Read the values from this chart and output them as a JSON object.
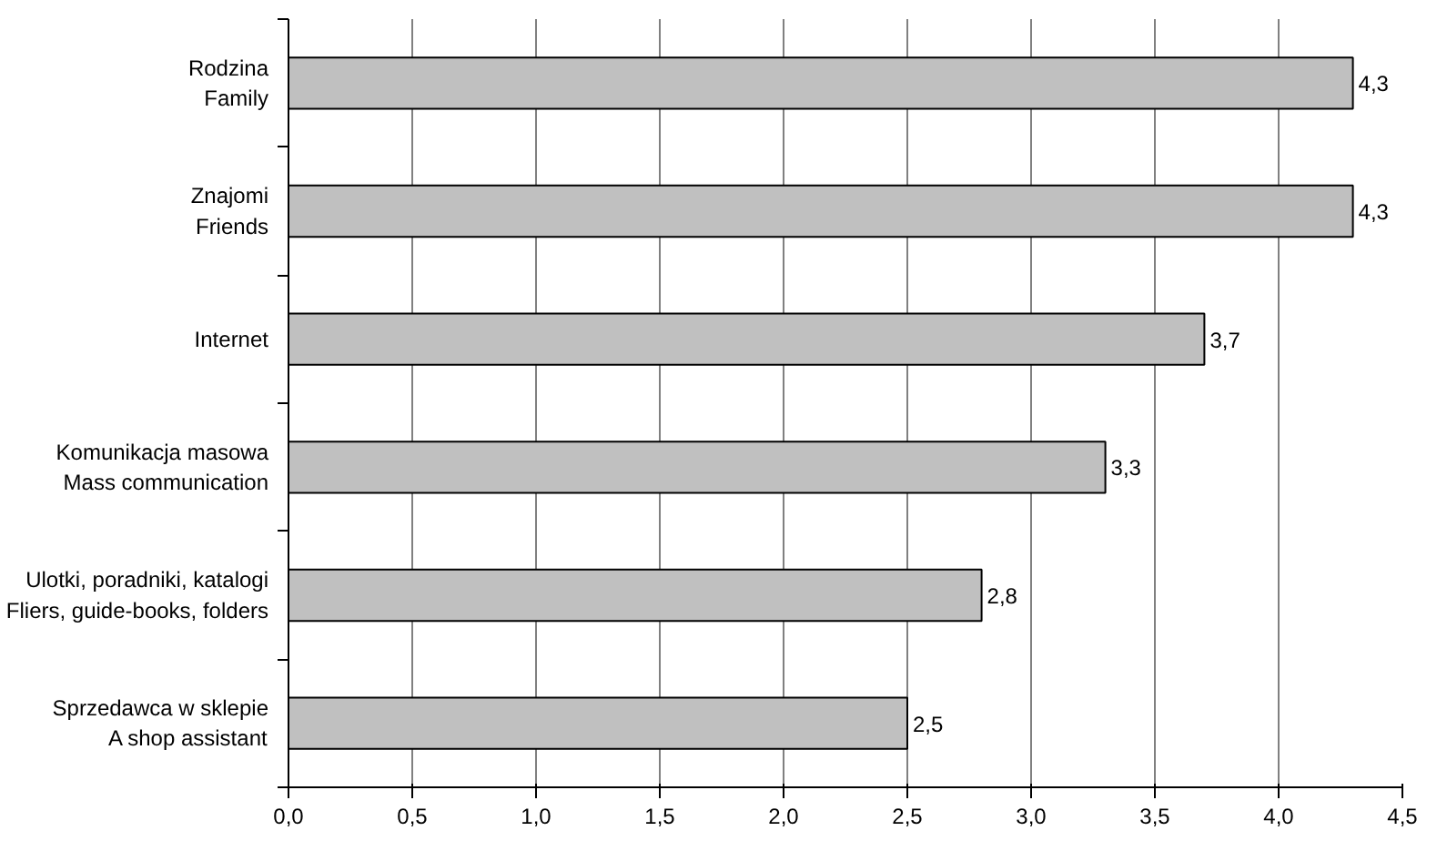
{
  "chart_data": {
    "type": "bar",
    "orientation": "horizontal",
    "categories": [
      "Rodzina\nFamily",
      "Znajomi\nFriends",
      "Internet",
      "Komunikacja masowa\nMass communication",
      "Ulotki, poradniki, katalogi\nFliers, guide-books, folders",
      "Sprzedawca w sklepie\nA shop assistant"
    ],
    "values": [
      4.3,
      4.3,
      3.7,
      3.3,
      2.8,
      2.5
    ],
    "value_labels": [
      "4,3",
      "4,3",
      "3,7",
      "3,3",
      "2,8",
      "2,5"
    ],
    "color": "#c0c0c0",
    "xlim": [
      0,
      4.5
    ],
    "xticks": [
      {
        "value": 0,
        "label": "0,0"
      },
      {
        "value": 0.5,
        "label": "0,5"
      },
      {
        "value": 1,
        "label": "1,0"
      },
      {
        "value": 1.5,
        "label": "1,5"
      },
      {
        "value": 2,
        "label": "2,0"
      },
      {
        "value": 2.5,
        "label": "2,5"
      },
      {
        "value": 3,
        "label": "3,0"
      },
      {
        "value": 3.5,
        "label": "3,5"
      },
      {
        "value": 4,
        "label": "4,0"
      },
      {
        "value": 4.5,
        "label": "4,5"
      }
    ],
    "grid": "x"
  }
}
